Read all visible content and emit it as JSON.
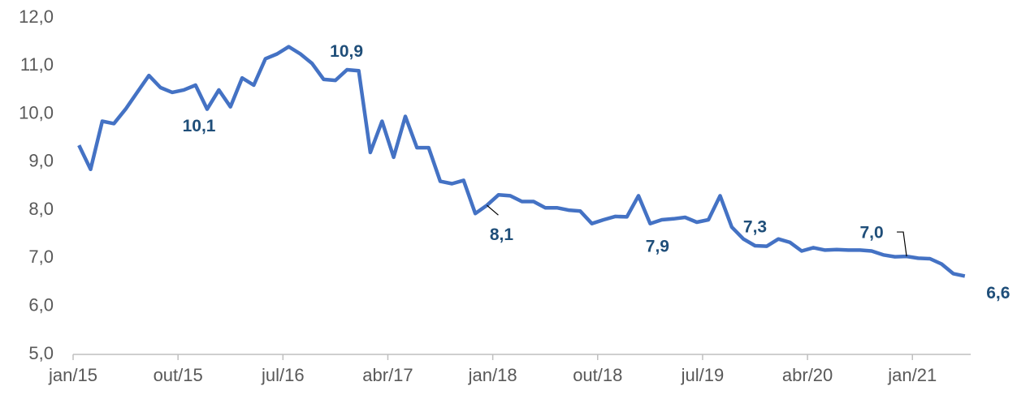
{
  "chart_data": {
    "type": "line",
    "categories": [
      "jan/15",
      null,
      null,
      null,
      null,
      null,
      null,
      null,
      null,
      "out/15",
      null,
      null,
      null,
      null,
      null,
      null,
      null,
      null,
      "jul/16",
      null,
      null,
      null,
      null,
      null,
      null,
      null,
      null,
      "abr/17",
      null,
      null,
      null,
      null,
      null,
      null,
      null,
      null,
      "jan/18",
      null,
      null,
      null,
      null,
      null,
      null,
      null,
      null,
      "out/18",
      null,
      null,
      null,
      null,
      null,
      null,
      null,
      null,
      "jul/19",
      null,
      null,
      null,
      null,
      null,
      null,
      null,
      null,
      "abr/20",
      null,
      null,
      null,
      null,
      null,
      null,
      null,
      null,
      "jan/21",
      null,
      null,
      null,
      null
    ],
    "series": [
      {
        "color": "#4472c4",
        "values": [
          9.35,
          8.85,
          9.85,
          9.8,
          10.1,
          10.45,
          10.8,
          10.55,
          10.45,
          10.5,
          10.6,
          10.1,
          10.5,
          10.15,
          10.75,
          10.6,
          11.15,
          11.25,
          11.4,
          11.25,
          11.05,
          10.72,
          10.7,
          10.92,
          10.9,
          9.2,
          9.85,
          9.1,
          9.95,
          9.3,
          9.3,
          8.6,
          8.55,
          8.62,
          7.93,
          8.1,
          8.32,
          8.3,
          8.18,
          8.18,
          8.05,
          8.05,
          8.0,
          7.98,
          7.72,
          7.8,
          7.87,
          7.86,
          8.3,
          7.72,
          7.8,
          7.82,
          7.85,
          7.75,
          7.8,
          8.3,
          7.65,
          7.4,
          7.26,
          7.25,
          7.4,
          7.33,
          7.15,
          7.22,
          7.17,
          7.18,
          7.17,
          7.17,
          7.15,
          7.07,
          7.03,
          7.04,
          7.0,
          6.99,
          6.88,
          6.68,
          6.63
        ],
        "value_labels": [
          null,
          null,
          null,
          null,
          null,
          null,
          null,
          null,
          null,
          null,
          null,
          "10,1",
          null,
          null,
          null,
          null,
          null,
          null,
          null,
          null,
          null,
          null,
          null,
          null,
          "10,9",
          null,
          null,
          null,
          null,
          null,
          null,
          null,
          null,
          null,
          null,
          "8,1",
          null,
          null,
          null,
          null,
          null,
          null,
          null,
          null,
          null,
          null,
          null,
          null,
          null,
          null,
          null,
          null,
          "7,9",
          null,
          null,
          null,
          null,
          null,
          "7,3",
          null,
          null,
          null,
          null,
          null,
          null,
          null,
          null,
          null,
          null,
          null,
          null,
          "7,0",
          null,
          null,
          null,
          null,
          "6,6"
        ]
      }
    ],
    "ylim": [
      5,
      12
    ],
    "yticks": [
      {
        "value": 5,
        "label": "5,0"
      },
      {
        "value": 6,
        "label": "6,0"
      },
      {
        "value": 7,
        "label": "7,0"
      },
      {
        "value": 8,
        "label": "8,0"
      },
      {
        "value": 9,
        "label": "9,0"
      },
      {
        "value": 10,
        "label": "10,0"
      },
      {
        "value": 11,
        "label": "11,0"
      },
      {
        "value": 12,
        "label": "12,0"
      }
    ],
    "grid": false
  }
}
